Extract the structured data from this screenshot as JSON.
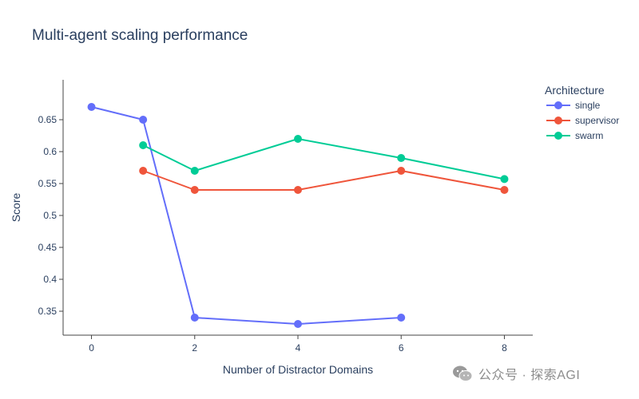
{
  "chart_data": {
    "type": "line",
    "title": "Multi-agent scaling performance",
    "xlabel": "Number of Distractor Domains",
    "ylabel": "Score",
    "xlim": [
      -0.55,
      8.55
    ],
    "ylim": [
      0.3125,
      0.7125
    ],
    "xticks": [
      0,
      2,
      4,
      6,
      8
    ],
    "yticks": [
      0.35,
      0.4,
      0.45,
      0.5,
      0.55,
      0.6,
      0.65
    ],
    "ytick_labels": [
      "0.35",
      "0.4",
      "0.45",
      "0.5",
      "0.55",
      "0.6",
      "0.65"
    ],
    "grid": false,
    "legend": {
      "title": "Architecture",
      "position": "right"
    },
    "series": [
      {
        "name": "single",
        "color": "#636efa",
        "x": [
          0,
          1,
          2,
          4,
          6
        ],
        "y": [
          0.67,
          0.65,
          0.34,
          0.33,
          0.34
        ]
      },
      {
        "name": "supervisor",
        "color": "#ef553b",
        "x": [
          1,
          2,
          4,
          6,
          8
        ],
        "y": [
          0.57,
          0.54,
          0.54,
          0.57,
          0.54
        ]
      },
      {
        "name": "swarm",
        "color": "#00cc96",
        "x": [
          1,
          2,
          4,
          6,
          8
        ],
        "y": [
          0.61,
          0.57,
          0.62,
          0.59,
          0.557
        ]
      }
    ]
  },
  "watermark": {
    "text": "公众号 · 探索AGI",
    "icon": "wechat-icon"
  }
}
